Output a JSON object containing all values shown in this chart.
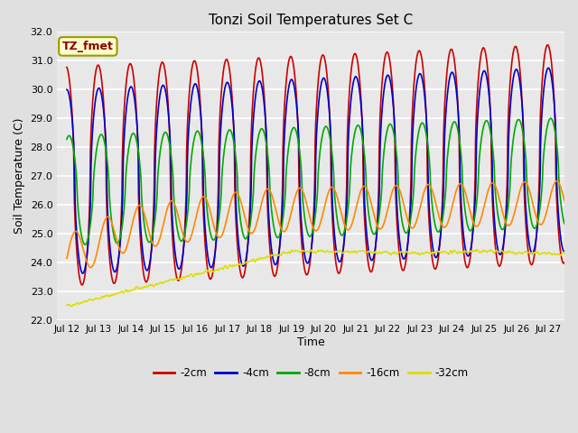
{
  "title": "Tonzi Soil Temperatures Set C",
  "xlabel": "Time",
  "ylabel": "Soil Temperature (C)",
  "annotation": "TZ_fmet",
  "annotation_color": "#8B0000",
  "annotation_bg": "#FFFFCC",
  "annotation_border": "#999900",
  "ylim": [
    22.0,
    32.0
  ],
  "x_tick_labels": [
    "Jul 12",
    "Jul 13",
    "Jul 14",
    "Jul 15",
    "Jul 16",
    "Jul 17",
    "Jul 18",
    "Jul 19",
    "Jul 20",
    "Jul 21",
    "Jul 22",
    "Jul 23",
    "Jul 24",
    "Jul 25",
    "Jul 26",
    "Jul 27"
  ],
  "yticks": [
    22.0,
    23.0,
    24.0,
    25.0,
    26.0,
    27.0,
    28.0,
    29.0,
    30.0,
    31.0,
    32.0
  ],
  "series": {
    "-2cm": {
      "color": "#CC0000",
      "lw": 1.2
    },
    "-4cm": {
      "color": "#0000CC",
      "lw": 1.2
    },
    "-8cm": {
      "color": "#00AA00",
      "lw": 1.2
    },
    "-16cm": {
      "color": "#FF8800",
      "lw": 1.2
    },
    "-32cm": {
      "color": "#DDDD00",
      "lw": 1.0
    }
  },
  "legend_order": [
    "-2cm",
    "-4cm",
    "-8cm",
    "-16cm",
    "-32cm"
  ],
  "bg_color": "#E0E0E0",
  "plot_bg": "#E8E8E8",
  "grid_color": "#FFFFFF",
  "n_points": 1500
}
